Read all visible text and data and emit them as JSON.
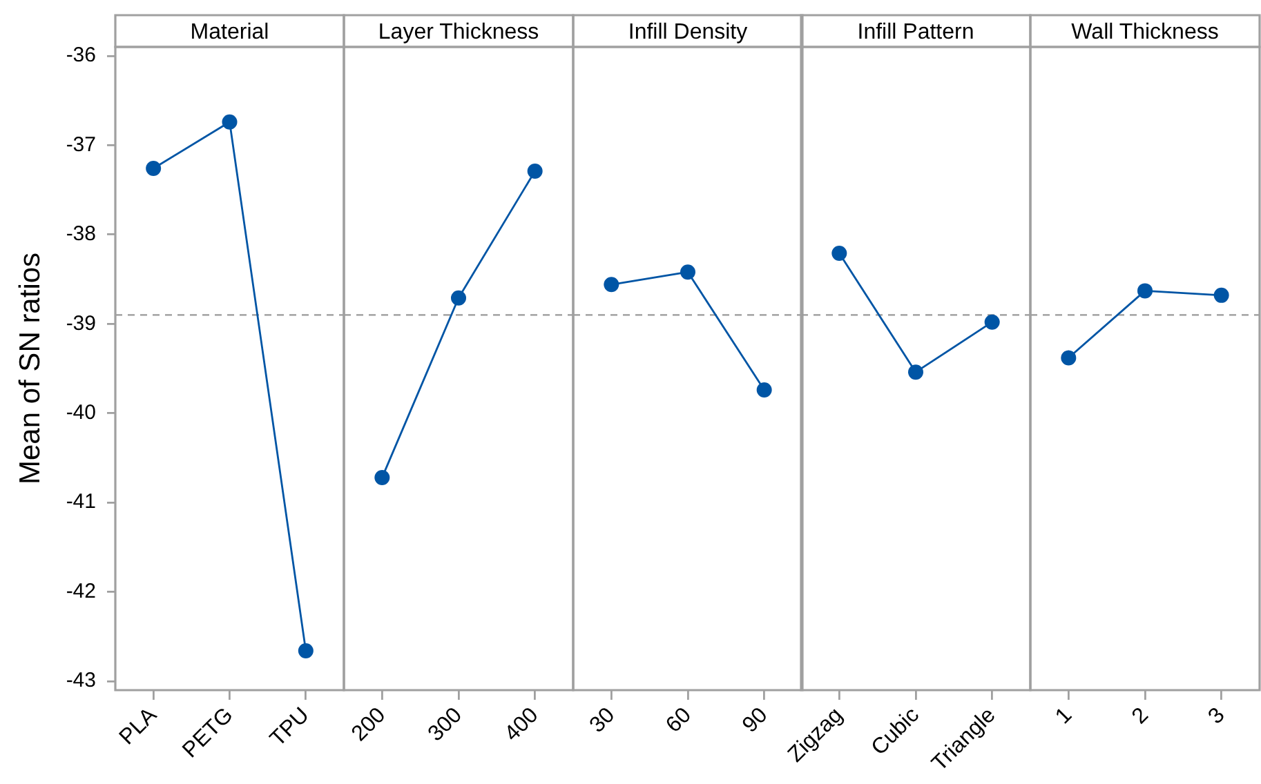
{
  "chart_data": [
    {
      "type": "line",
      "title": "Material",
      "ylabel": "Mean of SN ratios",
      "categories": [
        "PLA",
        "PETG",
        "TPU"
      ],
      "series": [
        {
          "color": "#0055a5",
          "values": [
            -37.26,
            -36.74,
            -42.66
          ]
        }
      ],
      "ylim": [
        -43.1,
        -35.9
      ],
      "yticks": [
        -43,
        -42,
        -41,
        -40,
        -39,
        -38,
        -37,
        -36
      ],
      "marker": "circle",
      "ref_lines": [
        {
          "axis": "y",
          "value": -38.9,
          "color": "#999999",
          "line_style": "dashed"
        }
      ]
    },
    {
      "type": "line",
      "title": "Layer Thickness",
      "categories": [
        "200",
        "300",
        "400"
      ],
      "series": [
        {
          "color": "#0055a5",
          "values": [
            -40.72,
            -38.71,
            -37.29
          ]
        }
      ],
      "ylim": [
        -43.1,
        -35.9
      ],
      "tick_labels": "x",
      "marker": "circle",
      "ref_lines": [
        {
          "axis": "y",
          "value": -38.9,
          "color": "#999999",
          "line_style": "dashed"
        }
      ]
    },
    {
      "type": "line",
      "title": "Infill Density",
      "categories": [
        "30",
        "60",
        "90"
      ],
      "series": [
        {
          "color": "#0055a5",
          "values": [
            -38.56,
            -38.42,
            -39.74
          ]
        }
      ],
      "ylim": [
        -43.1,
        -35.9
      ],
      "tick_labels": "x",
      "marker": "circle",
      "ref_lines": [
        {
          "axis": "y",
          "value": -38.9,
          "color": "#999999",
          "line_style": "dashed"
        }
      ]
    },
    {
      "type": "line",
      "title": "Infill Pattern",
      "categories": [
        "Zigzag",
        "Cubic",
        "Triangle"
      ],
      "series": [
        {
          "color": "#0055a5",
          "values": [
            -38.21,
            -39.54,
            -38.98
          ]
        }
      ],
      "ylim": [
        -43.1,
        -35.9
      ],
      "tick_labels": "x",
      "marker": "circle",
      "ref_lines": [
        {
          "axis": "y",
          "value": -38.9,
          "color": "#999999",
          "line_style": "dashed"
        }
      ]
    },
    {
      "type": "line",
      "title": "Wall Thickness",
      "categories": [
        "1",
        "2",
        "3"
      ],
      "series": [
        {
          "color": "#0055a5",
          "values": [
            -39.38,
            -38.63,
            -38.68
          ]
        }
      ],
      "ylim": [
        -43.1,
        -35.9
      ],
      "tick_labels": "x",
      "marker": "circle",
      "ref_lines": [
        {
          "axis": "y",
          "value": -38.9,
          "color": "#999999",
          "line_style": "dashed"
        }
      ]
    }
  ]
}
